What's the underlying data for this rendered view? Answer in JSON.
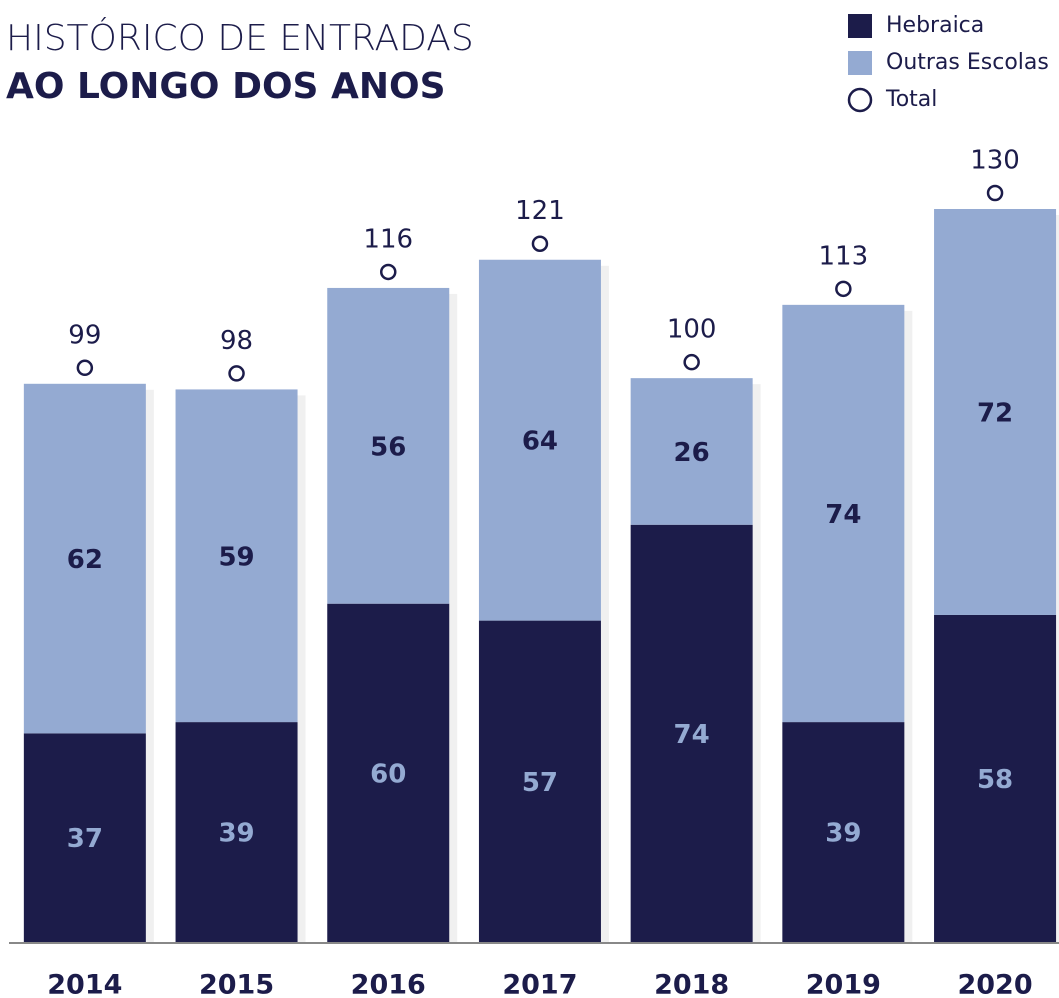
{
  "chart_data": {
    "type": "stacked_bar",
    "title": "HISTÓRICO DE ENTRADAS",
    "subtitle": "AO LONGO DOS ANOS",
    "categories": [
      "2014",
      "2015",
      "2016",
      "2017",
      "2018",
      "2019",
      "2020"
    ],
    "series": [
      {
        "name": "Hebraica",
        "color": "#1c1c4a",
        "label_color": "#94aad2",
        "values": [
          37,
          39,
          60,
          57,
          74,
          39,
          58
        ]
      },
      {
        "name": "Outras Escolas",
        "color": "#94aad2",
        "label_color": "#1c1c4a",
        "values": [
          62,
          59,
          56,
          64,
          26,
          74,
          72
        ]
      }
    ],
    "totals": {
      "name": "Total",
      "values": [
        99,
        98,
        116,
        121,
        100,
        113,
        130
      ]
    },
    "legend": "top-right"
  }
}
